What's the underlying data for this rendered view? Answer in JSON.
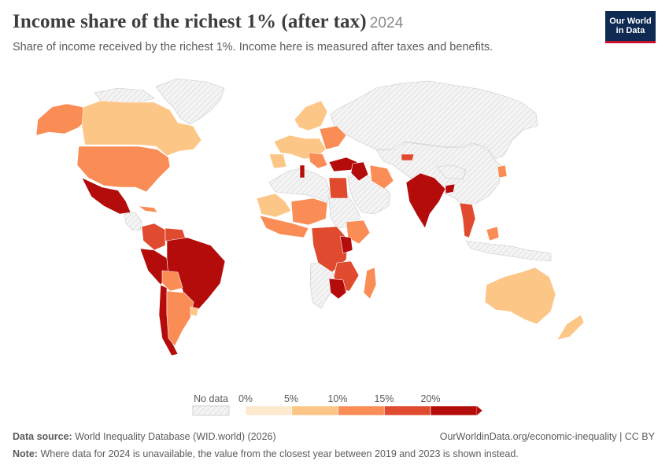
{
  "header": {
    "title": "Income share of the richest 1% (after tax)",
    "year": "2024",
    "subtitle": "Share of income received by the richest 1%. Income here is measured after taxes and benefits.",
    "logo_line1": "Our World",
    "logo_line2": "in Data"
  },
  "legend": {
    "no_data_label": "No data",
    "ticks": [
      "0%",
      "5%",
      "10%",
      "15%",
      "20%"
    ],
    "colors": [
      "#fde9cd",
      "#fcc687",
      "#fa8c55",
      "#e04a2e",
      "#b40b0b"
    ],
    "no_data_color": "#e6e6e6"
  },
  "footer": {
    "source_label": "Data source:",
    "source_text": "World Inequality Database (WID.world) (2026)",
    "url": "OurWorldinData.org/economic-inequality | CC BY",
    "note_label": "Note:",
    "note_text": "Where data for 2024 is unavailable, the value from the closest year between 2019 and 2023 is shown instead."
  }
}
